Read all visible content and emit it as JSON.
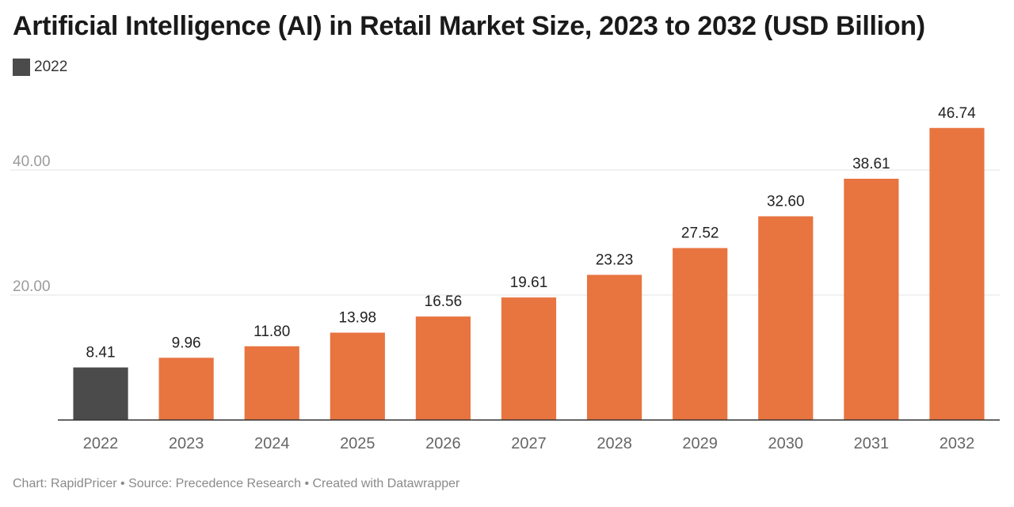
{
  "chart_data": {
    "type": "bar",
    "title": "Artificial Intelligence (AI) in Retail Market Size, 2023 to 2032 (USD Billion)",
    "legend": [
      {
        "name": "2022",
        "color": "#4b4b4b"
      }
    ],
    "categories": [
      "2022",
      "2023",
      "2024",
      "2025",
      "2026",
      "2027",
      "2028",
      "2029",
      "2030",
      "2031",
      "2032"
    ],
    "values": [
      8.41,
      9.96,
      11.8,
      13.98,
      16.56,
      19.61,
      23.23,
      27.52,
      32.6,
      38.61,
      46.74
    ],
    "value_labels": [
      "8.41",
      "9.96",
      "11.80",
      "13.98",
      "16.56",
      "19.61",
      "23.23",
      "27.52",
      "32.60",
      "38.61",
      "46.74"
    ],
    "highlight_category": "2022",
    "colors": {
      "highlight": "#4b4b4b",
      "default": "#e87440",
      "grid": "#e3e3e3",
      "axis": "#333333"
    },
    "ylim": [
      0,
      50
    ],
    "yticks": [
      {
        "value": 20,
        "label": "20.00"
      },
      {
        "value": 40,
        "label": "40.00"
      }
    ],
    "xlabel": "",
    "ylabel": "",
    "grid": true,
    "legend_position": "top-left",
    "footer": "Chart: RapidPricer • Source: Precedence Research • Created with Datawrapper"
  }
}
